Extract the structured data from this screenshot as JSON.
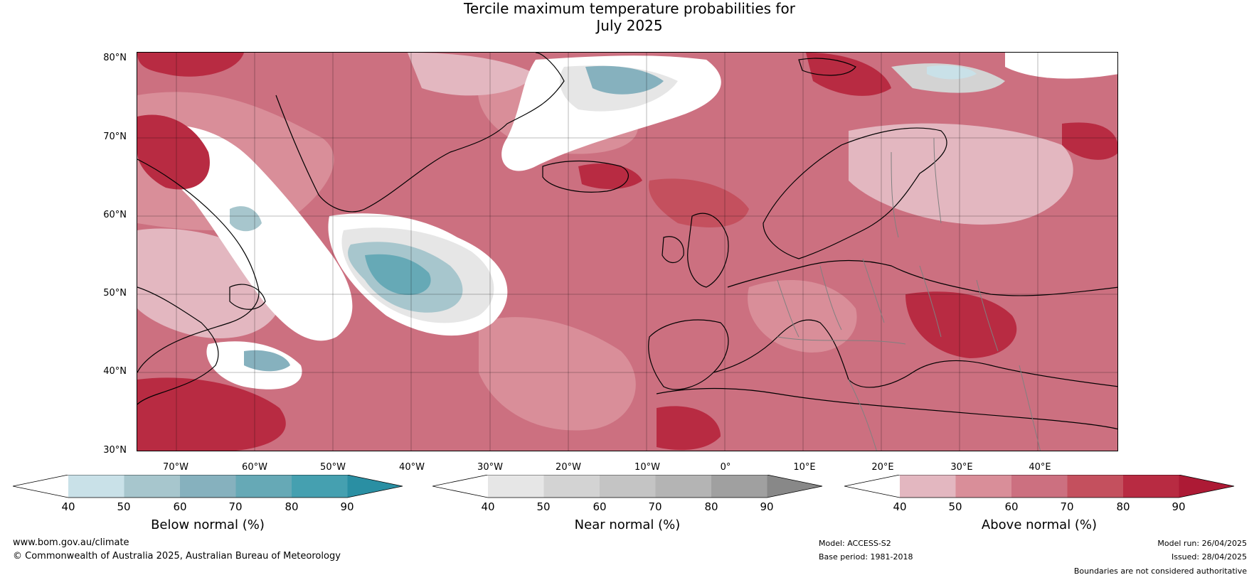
{
  "title_line1": "Tercile maximum temperature probabilities for",
  "title_line2": "July 2025",
  "lat_labels": [
    "80°N",
    "70°N",
    "60°N",
    "50°N",
    "40°N",
    "30°N"
  ],
  "lon_labels": [
    "70°W",
    "60°W",
    "50°W",
    "40°W",
    "30°W",
    "20°W",
    "10°W",
    "0°",
    "10°E",
    "20°E",
    "30°E",
    "40°E"
  ],
  "colorbars": [
    {
      "title": "Below normal (%)",
      "ticks": [
        "40",
        "50",
        "60",
        "70",
        "80",
        "90"
      ],
      "colors": [
        "#ffffff",
        "#c9e1e8",
        "#a7c6cd",
        "#86b1be",
        "#66a9b6",
        "#45a0b0",
        "#2a8fa3"
      ]
    },
    {
      "title": "Near normal (%)",
      "ticks": [
        "40",
        "50",
        "60",
        "70",
        "80",
        "90"
      ],
      "colors": [
        "#ffffff",
        "#e6e6e6",
        "#d3d3d3",
        "#c4c4c4",
        "#b4b4b4",
        "#a0a0a0",
        "#888888"
      ]
    },
    {
      "title": "Above normal (%)",
      "ticks": [
        "40",
        "50",
        "60",
        "70",
        "80",
        "90"
      ],
      "colors": [
        "#ffffff",
        "#e3b7c0",
        "#d98e99",
        "#cc7080",
        "#c4505e",
        "#b82b42",
        "#ad1a35"
      ]
    }
  ],
  "footer": {
    "website": "www.bom.gov.au/climate",
    "copyright": "© Commonwealth of Australia 2025, Australian Bureau of Meteorology",
    "model": "Model: ACCESS-S2",
    "base_period": "Base period: 1981-2018",
    "model_run": "Model run: 26/04/2025",
    "issued": "Issued: 28/04/2025",
    "disclaimer": "Boundaries are not considered authoritative"
  },
  "colors": {
    "ocean_above": "#cc7080",
    "land_above": "#d98e99",
    "strong_above": "#b82b42",
    "near": "#e6e6e6",
    "below": "#86b1be",
    "below_strong": "#45a0b0",
    "coast": "#000000",
    "border": "#808080"
  }
}
